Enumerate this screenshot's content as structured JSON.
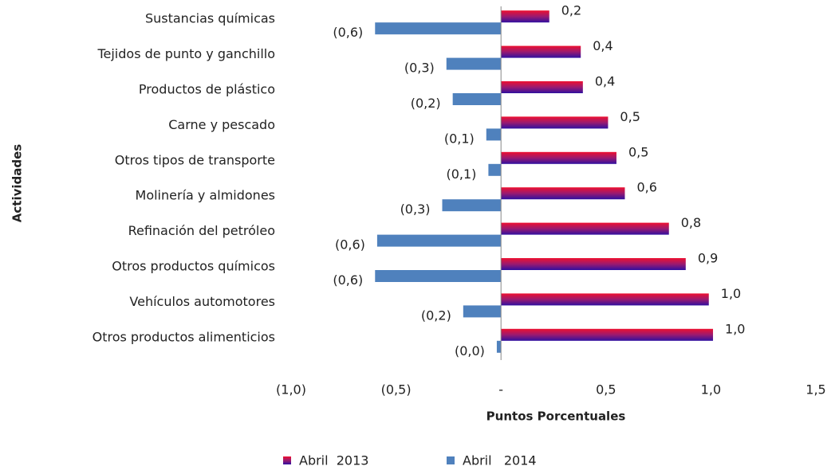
{
  "chart_data": {
    "type": "hbar",
    "y_axis_title": "Actividades",
    "x_axis_title": "Puntos Porcentuales",
    "categories": [
      "Sustancias químicas",
      "Tejidos de punto y ganchillo",
      "Productos de plástico",
      "Carne y pescado",
      "Otros tipos de transporte",
      "Molinería y almidones",
      "Refinación del petróleo",
      "Otros productos químicos",
      "Vehículos automotores",
      "Otros productos alimenticios"
    ],
    "series": [
      {
        "name": "Abril  2013",
        "color": "#9a1a70",
        "values": [
          0.23,
          0.38,
          0.39,
          0.51,
          0.55,
          0.59,
          0.8,
          0.88,
          0.99,
          1.01
        ],
        "value_labels": [
          "0,2",
          "0,4",
          "0,4",
          "0,5",
          "0,5",
          "0,6",
          "0,8",
          "0,9",
          "1,0",
          "1,0"
        ]
      },
      {
        "name": "Abril   2014",
        "color": "#4f81bd",
        "values": [
          -0.6,
          -0.26,
          -0.23,
          -0.07,
          -0.06,
          -0.28,
          -0.59,
          -0.6,
          -0.18,
          -0.02
        ],
        "value_labels": [
          "(0,6)",
          "(0,3)",
          "(0,2)",
          "(0,1)",
          "(0,1)",
          "(0,3)",
          "(0,6)",
          "(0,6)",
          "(0,2)",
          "(0,0)"
        ]
      }
    ],
    "xlim": [
      -1.0,
      1.5
    ],
    "xticks": [
      {
        "value": -1.0,
        "label": "(1,0)"
      },
      {
        "value": -0.5,
        "label": "(0,5)"
      },
      {
        "value": 0,
        "label": "-"
      },
      {
        "value": 0.5,
        "label": "0,5"
      },
      {
        "value": 1.0,
        "label": "1,0"
      },
      {
        "value": 1.5,
        "label": "1,5"
      }
    ],
    "legend": "bottom"
  }
}
